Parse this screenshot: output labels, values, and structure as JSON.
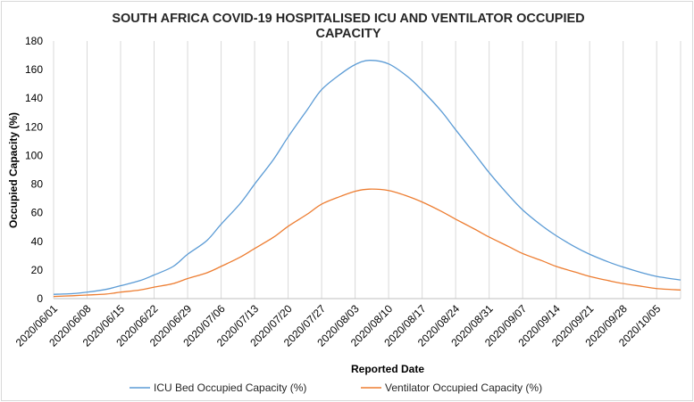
{
  "chart_data": {
    "type": "line",
    "title_lines": [
      "SOUTH AFRICA COVID-19 HOSPITALISED ICU AND VENTILATOR OCCUPIED",
      "CAPACITY"
    ],
    "xlabel": "Reported Date",
    "ylabel": "Occupied Capacity (%)",
    "ylim": [
      0,
      180
    ],
    "yticks": [
      0,
      20,
      40,
      60,
      80,
      100,
      120,
      140,
      160,
      180
    ],
    "grid": "vertical",
    "legend_position": "bottom",
    "x_start": "2020/06/01",
    "x_end": "2020/10/10",
    "x_tick_labels": [
      "2020/06/01",
      "2020/06/08",
      "2020/06/15",
      "2020/06/22",
      "2020/06/29",
      "2020/07/06",
      "2020/07/13",
      "2020/07/20",
      "2020/07/27",
      "2020/08/03",
      "2020/08/10",
      "2020/08/17",
      "2020/08/24",
      "2020/08/31",
      "2020/09/07",
      "2020/09/14",
      "2020/09/21",
      "2020/09/28",
      "2020/10/05"
    ],
    "x": [
      "2020/06/01",
      "2020/06/05",
      "2020/06/08",
      "2020/06/12",
      "2020/06/15",
      "2020/06/19",
      "2020/06/22",
      "2020/06/26",
      "2020/06/29",
      "2020/07/03",
      "2020/07/06",
      "2020/07/10",
      "2020/07/13",
      "2020/07/17",
      "2020/07/20",
      "2020/07/24",
      "2020/07/27",
      "2020/07/31",
      "2020/08/03",
      "2020/08/06",
      "2020/08/10",
      "2020/08/14",
      "2020/08/17",
      "2020/08/21",
      "2020/08/24",
      "2020/08/28",
      "2020/08/31",
      "2020/09/04",
      "2020/09/07",
      "2020/09/11",
      "2020/09/14",
      "2020/09/18",
      "2020/09/21",
      "2020/09/25",
      "2020/09/28",
      "2020/10/02",
      "2020/10/05",
      "2020/10/10"
    ],
    "series": [
      {
        "name": "ICU Bed Occupied Capacity (%)",
        "color": "#5b9bd5",
        "values": [
          3,
          3.5,
          4.5,
          6.5,
          9,
          12.5,
          16.5,
          22.5,
          31,
          40.5,
          52,
          66.5,
          80,
          97.5,
          113,
          132,
          146,
          157,
          163.5,
          166.5,
          164,
          155,
          145.5,
          131,
          118,
          101,
          88,
          72.5,
          62,
          51,
          44,
          36,
          31,
          25.5,
          22,
          18,
          15.5,
          13
        ]
      },
      {
        "name": "Ventilator Occupied Capacity (%)",
        "color": "#ed7d31",
        "values": [
          1.5,
          2,
          2.5,
          3.2,
          4.5,
          6,
          8,
          10.5,
          14,
          18,
          22.5,
          29,
          35,
          43,
          50.5,
          59,
          66,
          71.5,
          75,
          76.5,
          75.5,
          71.5,
          67.5,
          61,
          55.5,
          48.5,
          43,
          36.5,
          31.5,
          26.5,
          22.5,
          18.5,
          15.5,
          12.5,
          10.5,
          8.5,
          7,
          6
        ]
      }
    ]
  }
}
